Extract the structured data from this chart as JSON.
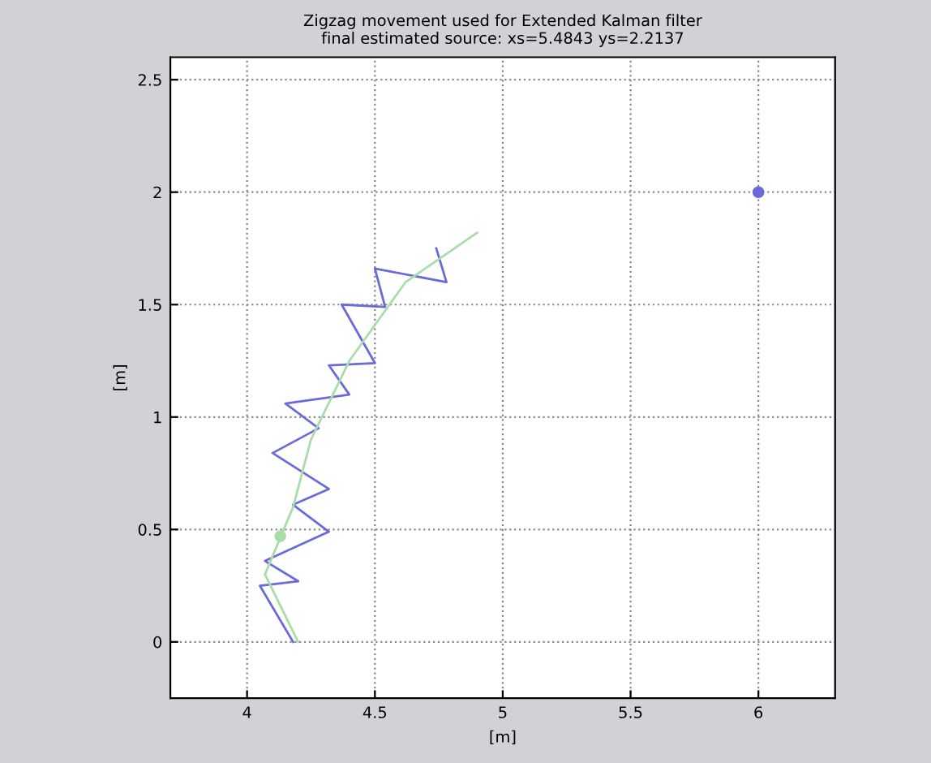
{
  "chart_data": {
    "type": "line",
    "title": "Zigzag movement used for Extended Kalman filter\nfinal estimated source: xs=5.4843 ys=2.2137",
    "xlabel": "[m]",
    "ylabel": "[m]",
    "xlim": [
      3.7,
      6.3
    ],
    "xticks": [
      4,
      4.5,
      5,
      5.5,
      6
    ],
    "ylim": [
      -0.25,
      2.6
    ],
    "yticks": [
      0,
      0.5,
      1,
      1.5,
      2,
      2.5
    ],
    "grid": true,
    "series": [
      {
        "color": "#6a6ad8",
        "x": [
          4.18,
          4.05,
          4.2,
          4.07,
          4.32,
          4.18,
          4.32,
          4.1,
          4.28,
          4.15,
          4.4,
          4.32,
          4.5,
          4.37,
          4.54,
          4.5,
          4.78,
          4.74
        ],
        "values": [
          0.0,
          0.25,
          0.27,
          0.36,
          0.49,
          0.61,
          0.68,
          0.84,
          0.95,
          1.06,
          1.1,
          1.23,
          1.24,
          1.5,
          1.49,
          1.66,
          1.6,
          1.75
        ]
      },
      {
        "color": "#a8dca8",
        "x": [
          4.2,
          4.07,
          4.18,
          4.25,
          4.4,
          4.62,
          4.9
        ],
        "values": [
          0.0,
          0.3,
          0.6,
          0.9,
          1.25,
          1.6,
          1.82
        ]
      },
      {
        "type": "scatter",
        "color": "#a8dca8",
        "marker": "circle",
        "x": [
          4.13
        ],
        "values": [
          0.47
        ]
      },
      {
        "type": "scatter",
        "color": "#6a6ad8",
        "marker": "circle",
        "x": [
          6
        ],
        "values": [
          2
        ]
      }
    ]
  }
}
